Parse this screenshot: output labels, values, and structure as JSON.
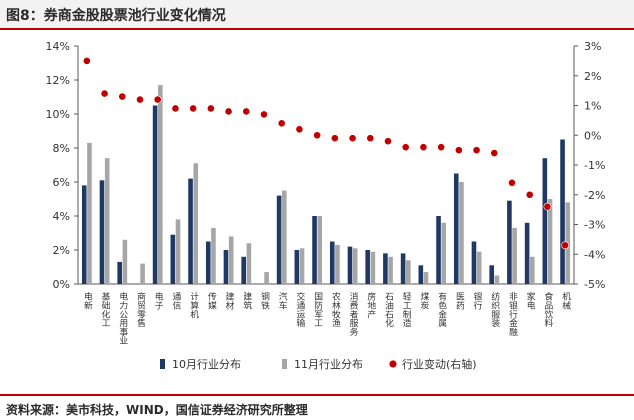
{
  "header": {
    "title": "图8：券商金股股票池行业变化情况"
  },
  "footer": {
    "source": "资料来源：美市科技，WIND，国信证券经济研究所整理"
  },
  "colors": {
    "oct": "#1f3864",
    "nov": "#a6a6a6",
    "change": "#c00000",
    "rule": "#c00000"
  },
  "chart_data": {
    "type": "bar",
    "categories": [
      "电新",
      "基础化工",
      "电力公用事业",
      "商贸零售",
      "电子",
      "通信",
      "计算机",
      "传媒",
      "建材",
      "建筑",
      "钢铁",
      "汽车",
      "交通运输",
      "国防军工",
      "农林牧渔",
      "消费者服务",
      "房地产",
      "石油石化",
      "轻工制造",
      "煤炭",
      "有色金属",
      "医药",
      "银行",
      "纺织服装",
      "非银行金融",
      "家电",
      "食品饮料",
      "机械"
    ],
    "series": [
      {
        "name": "10月行业分布",
        "axis": "left",
        "values": [
          5.8,
          6.1,
          1.3,
          0,
          10.5,
          2.9,
          6.2,
          2.5,
          2.0,
          1.6,
          0,
          5.2,
          2.0,
          4.0,
          2.5,
          2.2,
          2.0,
          1.8,
          1.8,
          1.1,
          4.0,
          6.5,
          2.5,
          1.1,
          4.9,
          3.6,
          7.4,
          8.5
        ]
      },
      {
        "name": "11月行业分布",
        "axis": "left",
        "values": [
          8.3,
          7.4,
          2.6,
          1.2,
          11.7,
          3.8,
          7.1,
          3.3,
          2.8,
          2.4,
          0.7,
          5.5,
          2.1,
          4.0,
          2.3,
          2.1,
          1.9,
          1.6,
          1.4,
          0.7,
          3.6,
          6.0,
          1.9,
          0.5,
          3.3,
          1.6,
          5.0,
          4.8
        ]
      },
      {
        "name": "行业变动(右轴)",
        "axis": "right",
        "type": "scatter",
        "values": [
          2.5,
          1.4,
          1.3,
          1.2,
          1.2,
          0.9,
          0.9,
          0.9,
          0.8,
          0.8,
          0.7,
          0.4,
          0.2,
          0.0,
          -0.1,
          -0.1,
          -0.1,
          -0.2,
          -0.4,
          -0.4,
          -0.4,
          -0.5,
          -0.5,
          -0.6,
          -1.6,
          -2.0,
          -2.4,
          -3.7
        ]
      }
    ],
    "y_left": {
      "ticks": [
        "0%",
        "2%",
        "4%",
        "6%",
        "8%",
        "10%",
        "12%",
        "14%"
      ],
      "lim": [
        0,
        14
      ]
    },
    "y_right": {
      "ticks": [
        "-5%",
        "-4%",
        "-3%",
        "-2%",
        "-1%",
        "0%",
        "1%",
        "2%",
        "3%"
      ],
      "lim": [
        -5,
        3
      ]
    },
    "legend": {
      "position": "bottom"
    },
    "grid": false
  }
}
